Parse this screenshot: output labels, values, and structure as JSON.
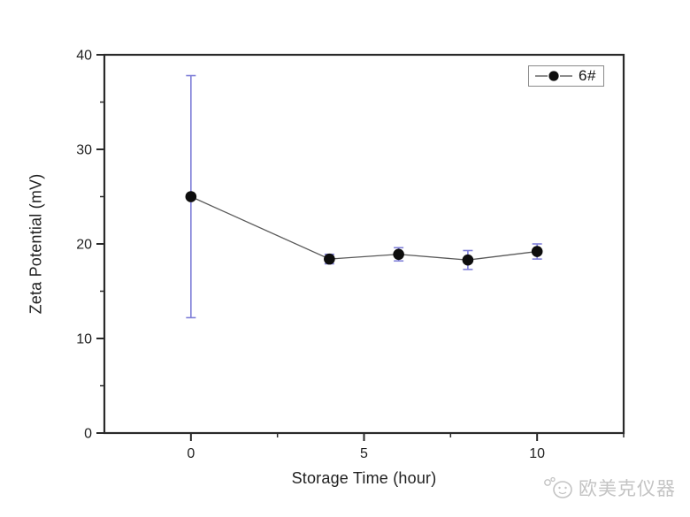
{
  "page": {
    "background": "#ffffff"
  },
  "chart_data": {
    "type": "line",
    "title": "",
    "xlabel": "Storage Time (hour)",
    "ylabel": "Zeta Potential (mV)",
    "xlim": [
      -2.5,
      12.5
    ],
    "ylim": [
      0,
      40
    ],
    "x_major_ticks": [
      0,
      5,
      10
    ],
    "x_minor_ticks": [
      2.5,
      7.5,
      12.5
    ],
    "y_major_ticks": [
      0,
      10,
      20,
      30,
      40
    ],
    "y_minor_ticks": [
      5,
      15,
      25,
      35
    ],
    "grid": false,
    "legend_position": "top-right",
    "series": [
      {
        "name": "6#",
        "x": [
          0,
          4,
          6,
          8,
          10
        ],
        "y": [
          25.0,
          18.4,
          18.9,
          18.3,
          19.2
        ],
        "y_error": [
          12.8,
          0.5,
          0.7,
          1.0,
          0.8
        ],
        "marker": "filled-circle",
        "marker_color": "#0d0d0d",
        "line_color": "#5a5a5a",
        "error_color": "#7f7fd8"
      }
    ],
    "colors": {
      "axis": "#2a2a2a",
      "tick_label": "#1f1f1f"
    }
  },
  "watermark": {
    "icon": "face-with-speech-bubbles-logo",
    "text": "欧美克仪器",
    "color": "#c4c4c4"
  }
}
